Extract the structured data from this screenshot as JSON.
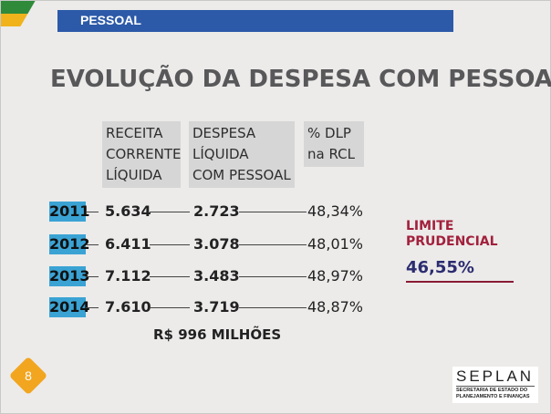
{
  "header": {
    "section": "PESSOAL"
  },
  "title": "EVOLUÇÃO DA DESPESA COM PESSOAL",
  "columns": [
    "RECEITA\nCORRENTE\nLÍQUIDA",
    "DESPESA\nLÍQUIDA\nCOM PESSOAL",
    "% DLP\nna RCL"
  ],
  "rows": [
    {
      "year": "2011",
      "rcl": "5.634",
      "dlp": "2.723",
      "pct": "48,34%"
    },
    {
      "year": "2012",
      "rcl": "6.411",
      "dlp": "3.078",
      "pct": "48,01%"
    },
    {
      "year": "2013",
      "rcl": "7.112",
      "dlp": "3.483",
      "pct": "48,97%"
    },
    {
      "year": "2014",
      "rcl": "7.610",
      "dlp": "3.719",
      "pct": "48,87%"
    }
  ],
  "total": "R$ 996 MILHÕES",
  "limit": {
    "label": "LIMITE\nPRUDENCIAL",
    "value": "46,55%"
  },
  "page_number": "8",
  "logo": {
    "name": "SEPLAN",
    "subtitle": "SECRETARIA DE ESTADO DO\nPLANEJAMENTO E FINANÇAS"
  },
  "colors": {
    "header_bar": "#2c5aa8",
    "year_badge": "#3aa3d4",
    "limit_label": "#a2203c",
    "limit_value": "#2c2c70",
    "page_badge": "#f2a51f"
  }
}
